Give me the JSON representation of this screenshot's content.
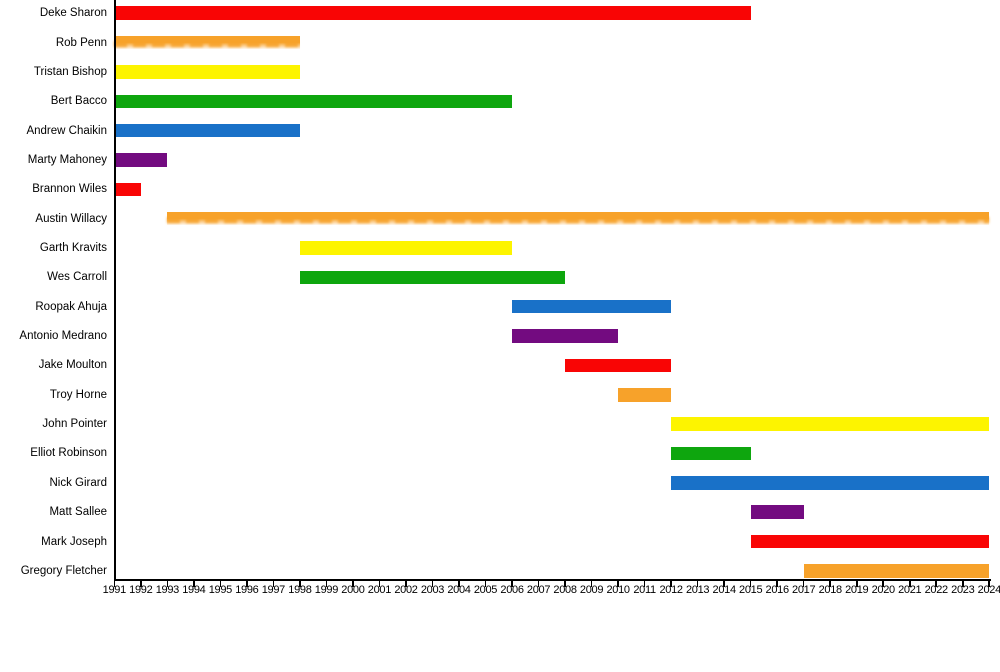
{
  "chart_data": {
    "type": "bar",
    "variant": "horizontal-timeline-gantt",
    "title": "",
    "xlabel": "",
    "ylabel": "",
    "grid": false,
    "legend": null,
    "x_axis": {
      "start_year": 1991,
      "end_year": 2024,
      "tick_step": 1,
      "tick_labels": [
        "1991",
        "1992",
        "1993",
        "1994",
        "1995",
        "1996",
        "1997",
        "1998",
        "1999",
        "2000",
        "2001",
        "2002",
        "2003",
        "2004",
        "2005",
        "2006",
        "2007",
        "2008",
        "2009",
        "2010",
        "2011",
        "2012",
        "2013",
        "2014",
        "2015",
        "2016",
        "2017",
        "2018",
        "2019",
        "2020",
        "2021",
        "2022",
        "2023",
        "2024"
      ]
    },
    "axis_color": "#000000",
    "palette": {
      "red": "#f90505",
      "orange": "#f7a22a",
      "yellow": "#fdf400",
      "green": "#0ea60e",
      "blue": "#1971c8",
      "purple": "#730b80"
    },
    "members": [
      {
        "name": "Deke Sharon",
        "start": 1991,
        "end": 2015,
        "color": "#f90505",
        "fade": false
      },
      {
        "name": "Rob Penn",
        "start": 1991,
        "end": 1998,
        "color": "#f7a22a",
        "fade": true
      },
      {
        "name": "Tristan Bishop",
        "start": 1991,
        "end": 1998,
        "color": "#fdf400",
        "fade": false
      },
      {
        "name": "Bert Bacco",
        "start": 1991,
        "end": 2006,
        "color": "#0ea60e",
        "fade": false
      },
      {
        "name": "Andrew Chaikin",
        "start": 1991,
        "end": 1998,
        "color": "#1971c8",
        "fade": false
      },
      {
        "name": "Marty Mahoney",
        "start": 1991,
        "end": 1993,
        "color": "#730b80",
        "fade": false
      },
      {
        "name": "Brannon Wiles",
        "start": 1991,
        "end": 1992,
        "color": "#f90505",
        "fade": false
      },
      {
        "name": "Austin Willacy",
        "start": 1993,
        "end": 2024,
        "color": "#f7a22a",
        "fade": true
      },
      {
        "name": "Garth Kravits",
        "start": 1998,
        "end": 2006,
        "color": "#fdf400",
        "fade": false
      },
      {
        "name": "Wes Carroll",
        "start": 1998,
        "end": 2008,
        "color": "#0ea60e",
        "fade": false
      },
      {
        "name": "Roopak Ahuja",
        "start": 2006,
        "end": 2012,
        "color": "#1971c8",
        "fade": false
      },
      {
        "name": "Antonio Medrano",
        "start": 2006,
        "end": 2010,
        "color": "#730b80",
        "fade": false
      },
      {
        "name": "Jake Moulton",
        "start": 2008,
        "end": 2012,
        "color": "#f90505",
        "fade": false
      },
      {
        "name": "Troy Horne",
        "start": 2010,
        "end": 2012,
        "color": "#f7a22a",
        "fade": false
      },
      {
        "name": "John Pointer",
        "start": 2012,
        "end": 2024,
        "color": "#fdf400",
        "fade": false
      },
      {
        "name": "Elliot Robinson",
        "start": 2012,
        "end": 2015,
        "color": "#0ea60e",
        "fade": false
      },
      {
        "name": "Nick Girard",
        "start": 2012,
        "end": 2024,
        "color": "#1971c8",
        "fade": false
      },
      {
        "name": "Matt Sallee",
        "start": 2015,
        "end": 2017,
        "color": "#730b80",
        "fade": false
      },
      {
        "name": "Mark Joseph",
        "start": 2015,
        "end": 2024,
        "color": "#f90505",
        "fade": false
      },
      {
        "name": "Gregory Fletcher",
        "start": 2017,
        "end": 2024,
        "color": "#f7a22a",
        "fade": false
      }
    ]
  }
}
